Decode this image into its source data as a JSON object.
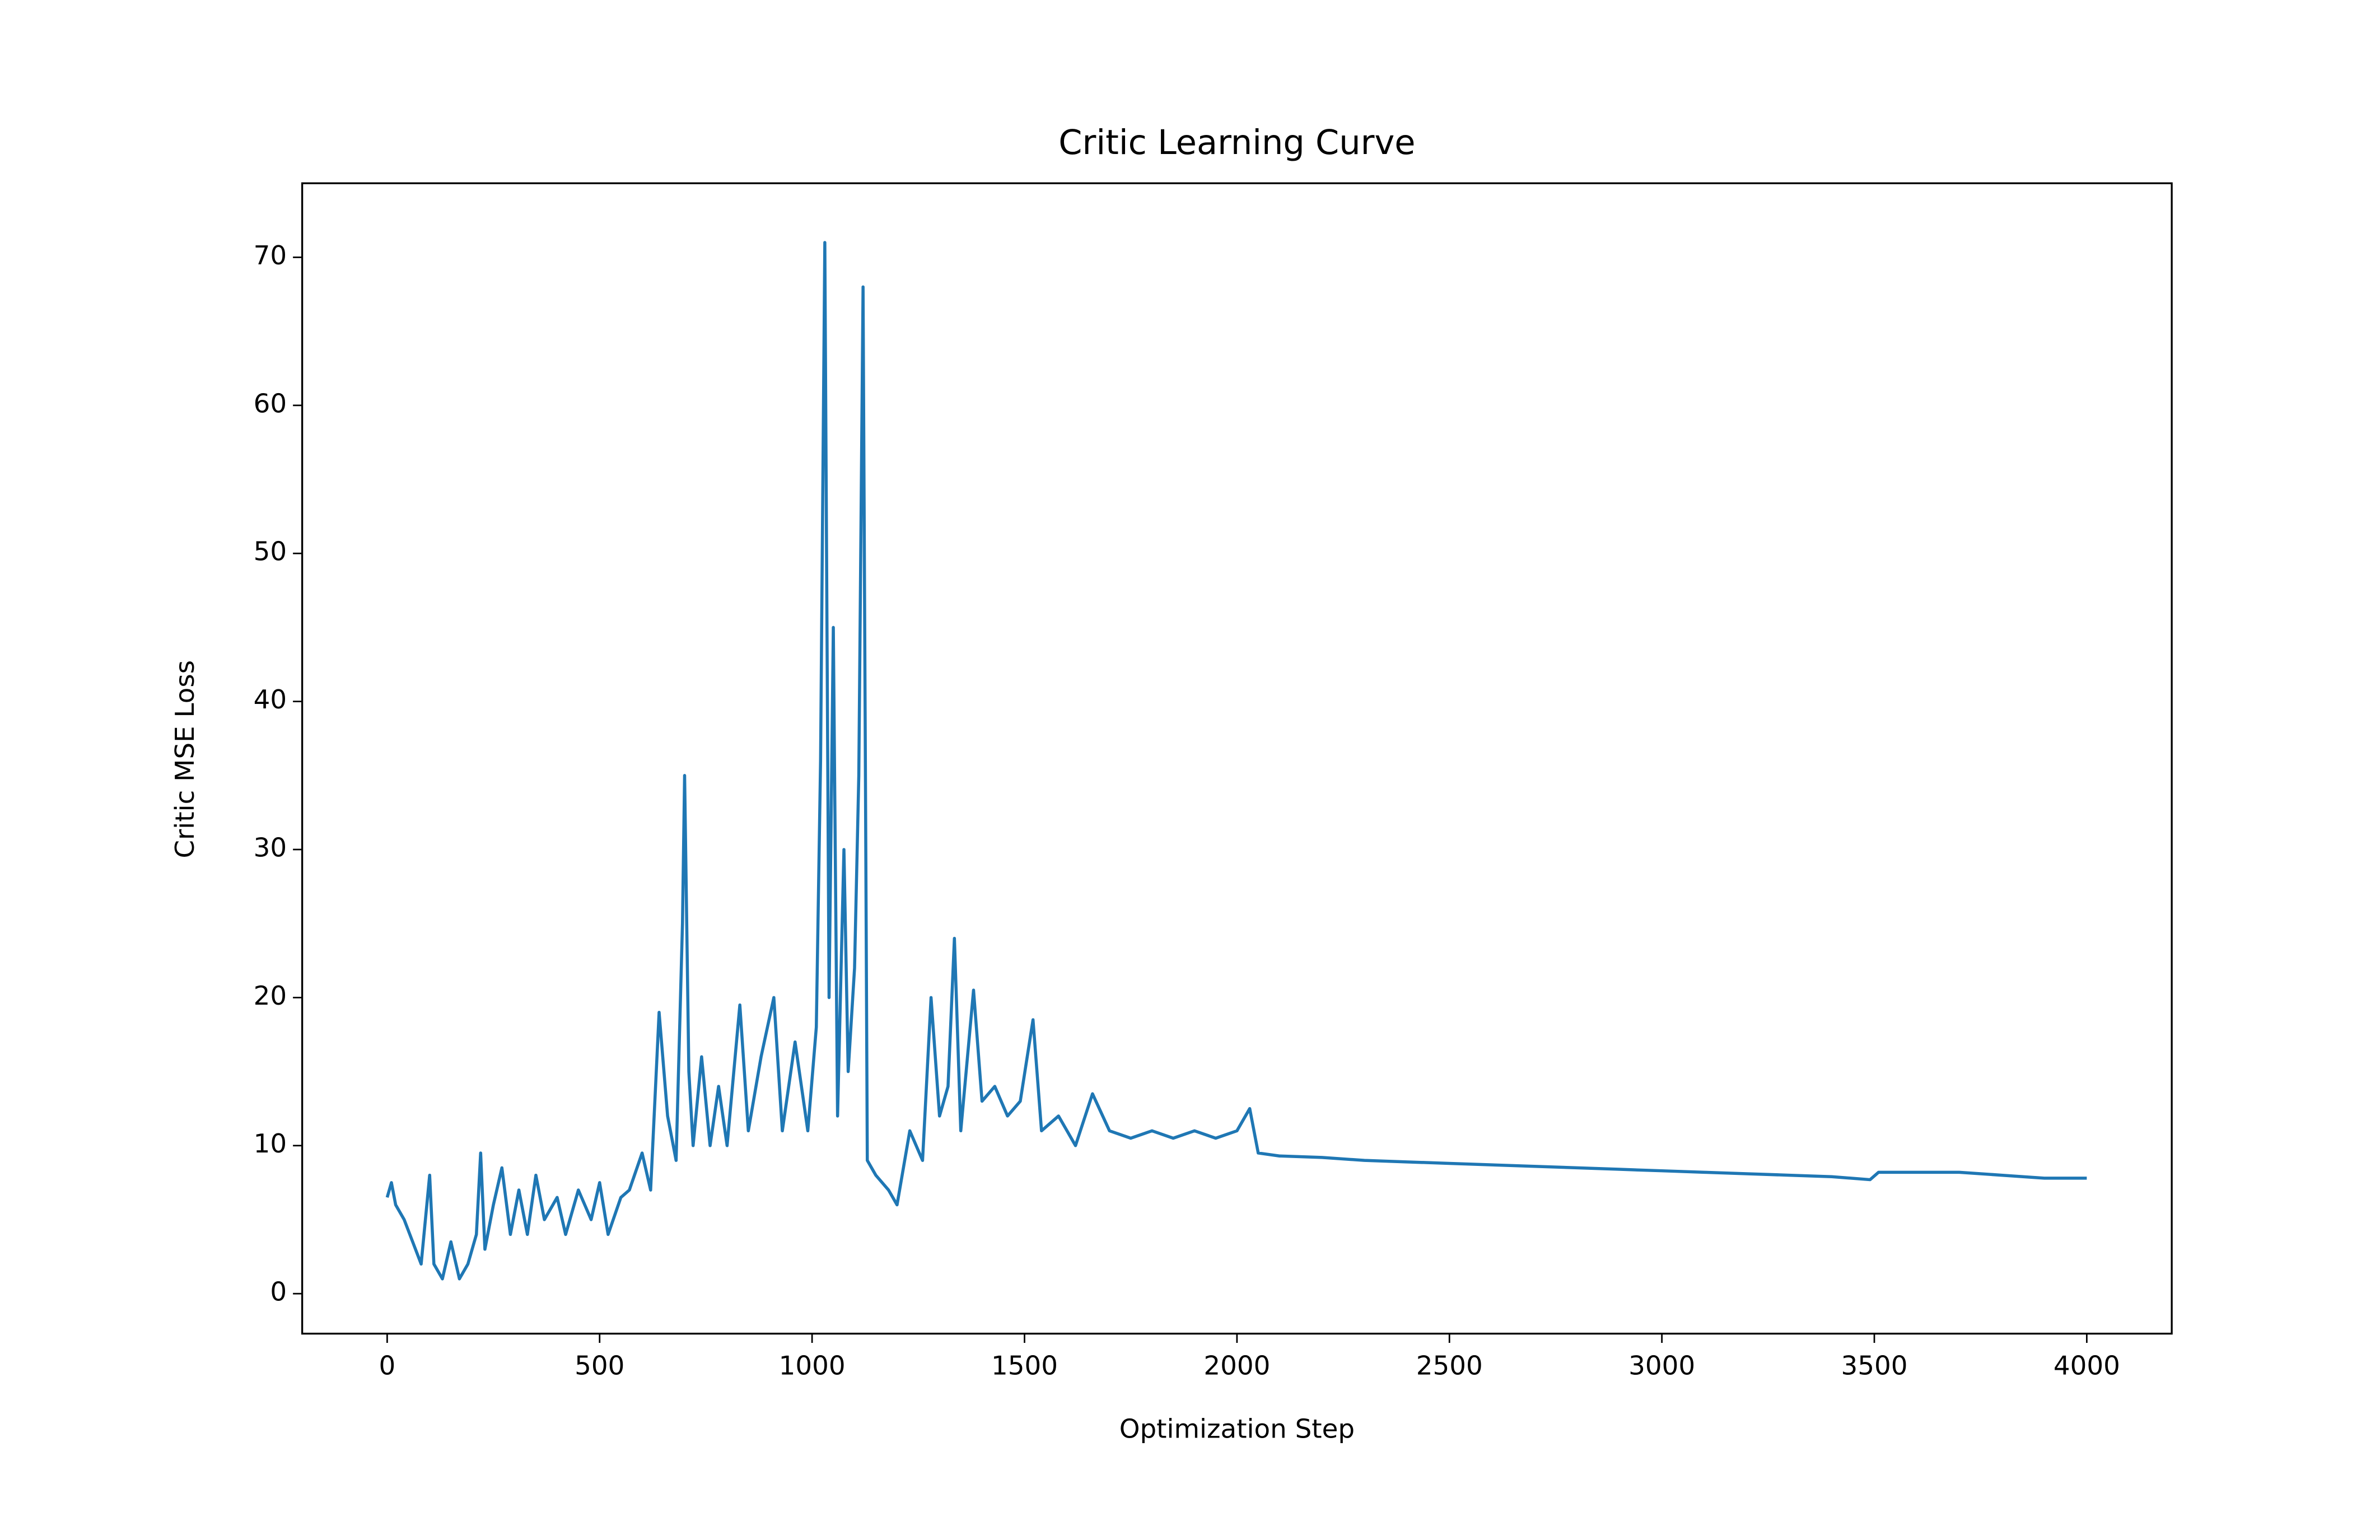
{
  "chart_data": {
    "type": "line",
    "title": "Critic Learning Curve",
    "x_label": "Optimization Step",
    "y_label": "Critic MSE Loss",
    "xlim": [
      -200,
      4200
    ],
    "ylim": [
      -2.7,
      75
    ],
    "xticks": [
      0,
      500,
      1000,
      1500,
      2000,
      2500,
      3000,
      3500,
      4000
    ],
    "yticks": [
      0,
      10,
      20,
      30,
      40,
      50,
      60,
      70
    ],
    "grid": false,
    "series": [
      {
        "color": "#1f77b4",
        "x": [
          0,
          10,
          20,
          40,
          60,
          80,
          100,
          110,
          130,
          150,
          170,
          190,
          210,
          220,
          230,
          250,
          270,
          290,
          310,
          330,
          350,
          370,
          400,
          420,
          450,
          480,
          500,
          520,
          550,
          570,
          600,
          620,
          640,
          660,
          680,
          695,
          700,
          710,
          720,
          740,
          760,
          780,
          800,
          830,
          850,
          880,
          910,
          930,
          960,
          990,
          1010,
          1020,
          1030,
          1040,
          1050,
          1060,
          1075,
          1085,
          1100,
          1110,
          1120,
          1130,
          1150,
          1180,
          1200,
          1230,
          1260,
          1280,
          1300,
          1320,
          1335,
          1350,
          1380,
          1400,
          1430,
          1460,
          1490,
          1520,
          1540,
          1580,
          1620,
          1660,
          1700,
          1750,
          1800,
          1850,
          1900,
          1950,
          2000,
          2030,
          2050,
          2100,
          2200,
          2300,
          2400,
          2500,
          2600,
          2700,
          2800,
          2900,
          3000,
          3100,
          3200,
          3300,
          3400,
          3490,
          3510,
          3600,
          3700,
          3800,
          3900,
          4000
        ],
        "values": [
          6.5,
          7.5,
          6,
          5,
          3.5,
          2,
          8,
          2,
          1,
          3.5,
          1,
          2,
          4,
          9.5,
          3,
          6,
          8.5,
          4,
          7,
          4,
          8,
          5,
          6.5,
          4,
          7,
          5,
          7.5,
          4,
          6.5,
          7,
          9.5,
          7,
          19,
          12,
          9,
          25,
          35,
          15,
          10,
          16,
          10,
          14,
          10,
          19.5,
          11,
          16,
          20,
          11,
          17,
          11,
          18,
          36,
          71,
          20,
          45,
          12,
          30,
          15,
          22,
          35,
          68,
          9,
          8,
          7,
          6,
          11,
          9,
          20,
          12,
          14,
          24,
          11,
          20.5,
          13,
          14,
          12,
          13,
          18.5,
          11,
          12,
          10,
          13.5,
          11,
          10.5,
          11,
          10.5,
          11,
          10.5,
          11,
          12.5,
          9.5,
          9.3,
          9.2,
          9,
          8.9,
          8.8,
          8.7,
          8.6,
          8.5,
          8.4,
          8.3,
          8.2,
          8.1,
          8,
          7.9,
          7.7,
          8.2,
          8.2,
          8.2,
          8,
          7.8,
          7.8
        ]
      }
    ]
  }
}
